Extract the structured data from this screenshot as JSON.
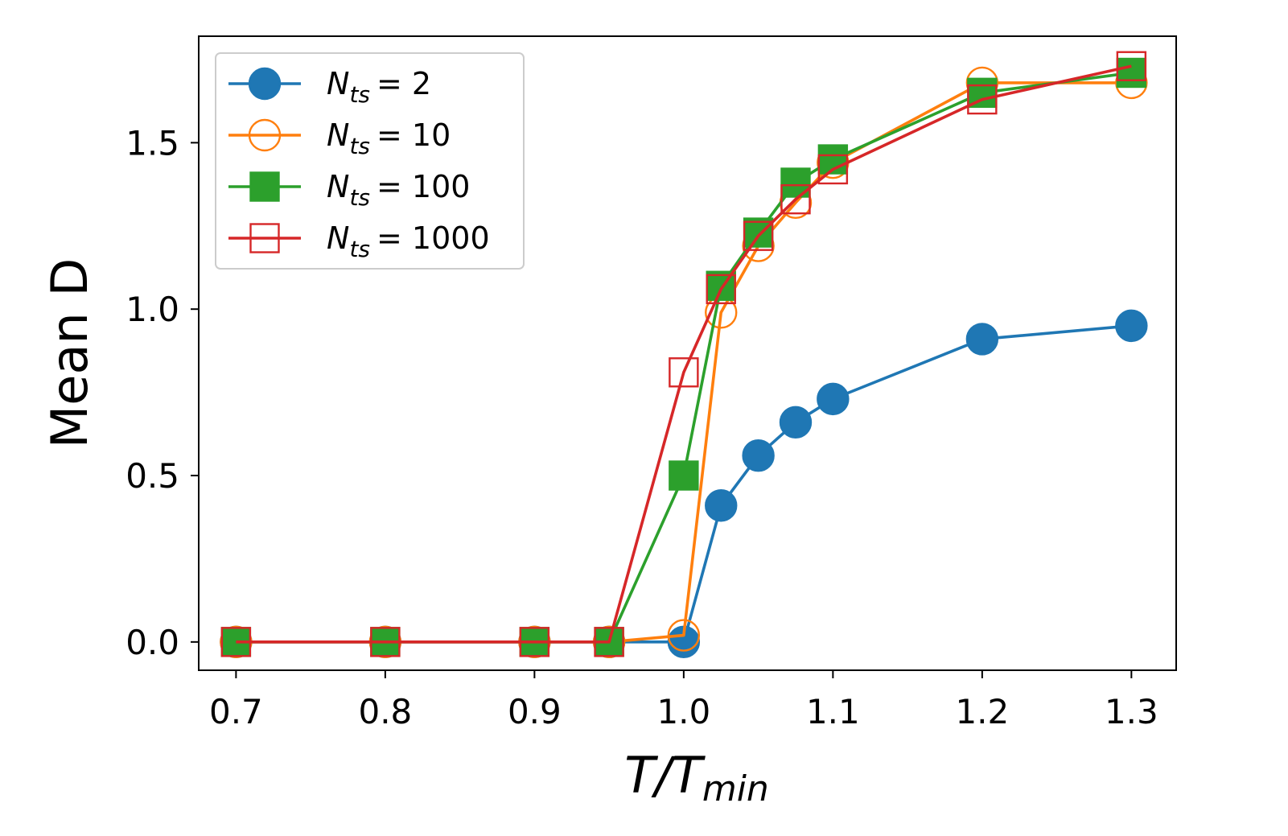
{
  "chart_data": {
    "type": "line",
    "xlabel": {
      "main": "T/T",
      "sub": "min"
    },
    "ylabel": "Mean D",
    "xlim": [
      0.675,
      1.33
    ],
    "ylim": [
      -0.085,
      1.82
    ],
    "x_ticks": [
      0.7,
      0.8,
      0.9,
      1.0,
      1.1,
      1.2,
      1.3
    ],
    "x_tick_labels": [
      "0.7",
      "0.8",
      "0.9",
      "1.0",
      "1.1",
      "1.2",
      "1.3"
    ],
    "y_ticks": [
      0.0,
      0.5,
      1.0,
      1.5
    ],
    "y_tick_labels": [
      "0.0",
      "0.5",
      "1.0",
      "1.5"
    ],
    "grid": false,
    "legend_position": "top-left",
    "x": [
      0.7,
      0.8,
      0.9,
      0.95,
      1.0,
      1.025,
      1.05,
      1.075,
      1.1,
      1.2,
      1.3
    ],
    "series": [
      {
        "name": "N_ts = 2",
        "legend_prefix": "N",
        "legend_sub": "ts",
        "legend_value": "= 2",
        "color": "#1f77b4",
        "marker": "circle",
        "filled": true,
        "values": [
          0.0,
          0.0,
          0.0,
          0.0,
          0.0,
          0.41,
          0.56,
          0.66,
          0.73,
          0.91,
          0.95
        ]
      },
      {
        "name": "N_ts = 10",
        "legend_prefix": "N",
        "legend_sub": "ts",
        "legend_value": "= 10",
        "color": "#ff7f0e",
        "marker": "circle",
        "filled": false,
        "values": [
          0.0,
          0.0,
          0.0,
          0.0,
          0.02,
          0.99,
          1.19,
          1.32,
          1.44,
          1.68,
          1.68
        ]
      },
      {
        "name": "N_ts = 100",
        "legend_prefix": "N",
        "legend_sub": "ts",
        "legend_value": "= 100",
        "color": "#2ca02c",
        "marker": "square",
        "filled": true,
        "values": [
          0.0,
          0.0,
          0.0,
          0.0,
          0.5,
          1.07,
          1.23,
          1.38,
          1.45,
          1.65,
          1.71
        ]
      },
      {
        "name": "N_ts = 1000",
        "legend_prefix": "N",
        "legend_sub": "ts",
        "legend_value": "= 1000",
        "color": "#d62728",
        "marker": "square",
        "filled": false,
        "values": [
          0.0,
          0.0,
          0.0,
          0.0,
          0.81,
          1.06,
          1.22,
          1.33,
          1.42,
          1.63,
          1.73
        ]
      }
    ]
  }
}
